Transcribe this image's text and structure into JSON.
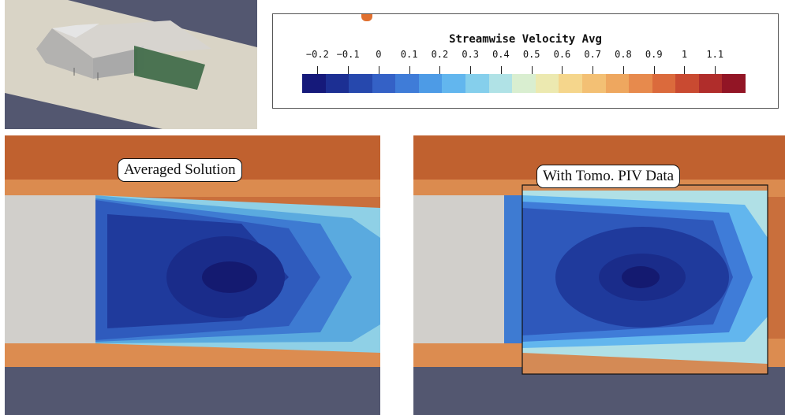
{
  "legend": {
    "title": "Streamwise Velocity Avg",
    "ticks": [
      "-0.2",
      "-0.1",
      "0",
      "0.1",
      "0.2",
      "0.3",
      "0.4",
      "0.5",
      "0.6",
      "0.7",
      "0.8",
      "0.9",
      "1",
      "1.1"
    ],
    "range": [
      -0.25,
      1.2
    ],
    "colors": [
      "#15197a",
      "#1c2f93",
      "#2648ad",
      "#3461c6",
      "#3f7cd8",
      "#4d9be6",
      "#62b6ee",
      "#85cfec",
      "#b0e2e6",
      "#d9eed0",
      "#ece9b0",
      "#f5d68c",
      "#f3c074",
      "#eea75f",
      "#e78a4d",
      "#db6a3c",
      "#c94a31",
      "#b02d2b",
      "#921525"
    ]
  },
  "panels": {
    "left_label": "Averaged Solution",
    "right_label": "With Tomo. PIV Data"
  }
}
